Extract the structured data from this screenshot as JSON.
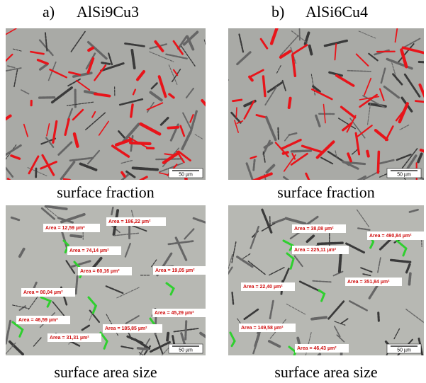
{
  "panels": [
    {
      "label": "a)",
      "alloy": "AlSi9Cu3",
      "images": [
        {
          "caption": "surface fraction",
          "scale_bar": "50 µm"
        },
        {
          "caption": "surface area size",
          "scale_bar": "50 µm",
          "areas": [
            "Area = 12,59 µm²",
            "Area = 186,22 µm²",
            "Area = 74,14 µm²",
            "Area = 60,16 µm²",
            "Area = 19,05 µm²",
            "Area = 80,04 µm²",
            "Area = 46,59 µm²",
            "Area = 45,29 µm²",
            "Area = 185,85 µm²",
            "Area = 31,31 µm²"
          ]
        }
      ]
    },
    {
      "label": "b)",
      "alloy": "AlSi6Cu4",
      "images": [
        {
          "caption": "surface fraction",
          "scale_bar": "50 µm"
        },
        {
          "caption": "surface area size",
          "scale_bar": "50 µm",
          "areas": [
            "Area = 38,08 µm²",
            "Area = 490,84 µm²",
            "Area = 225,11 µm²",
            "Area = 22,40 µm²",
            "Area = 351,84 µm²",
            "Area = 149,58 µm²",
            "Area = 46,43 µm²"
          ]
        }
      ]
    }
  ]
}
